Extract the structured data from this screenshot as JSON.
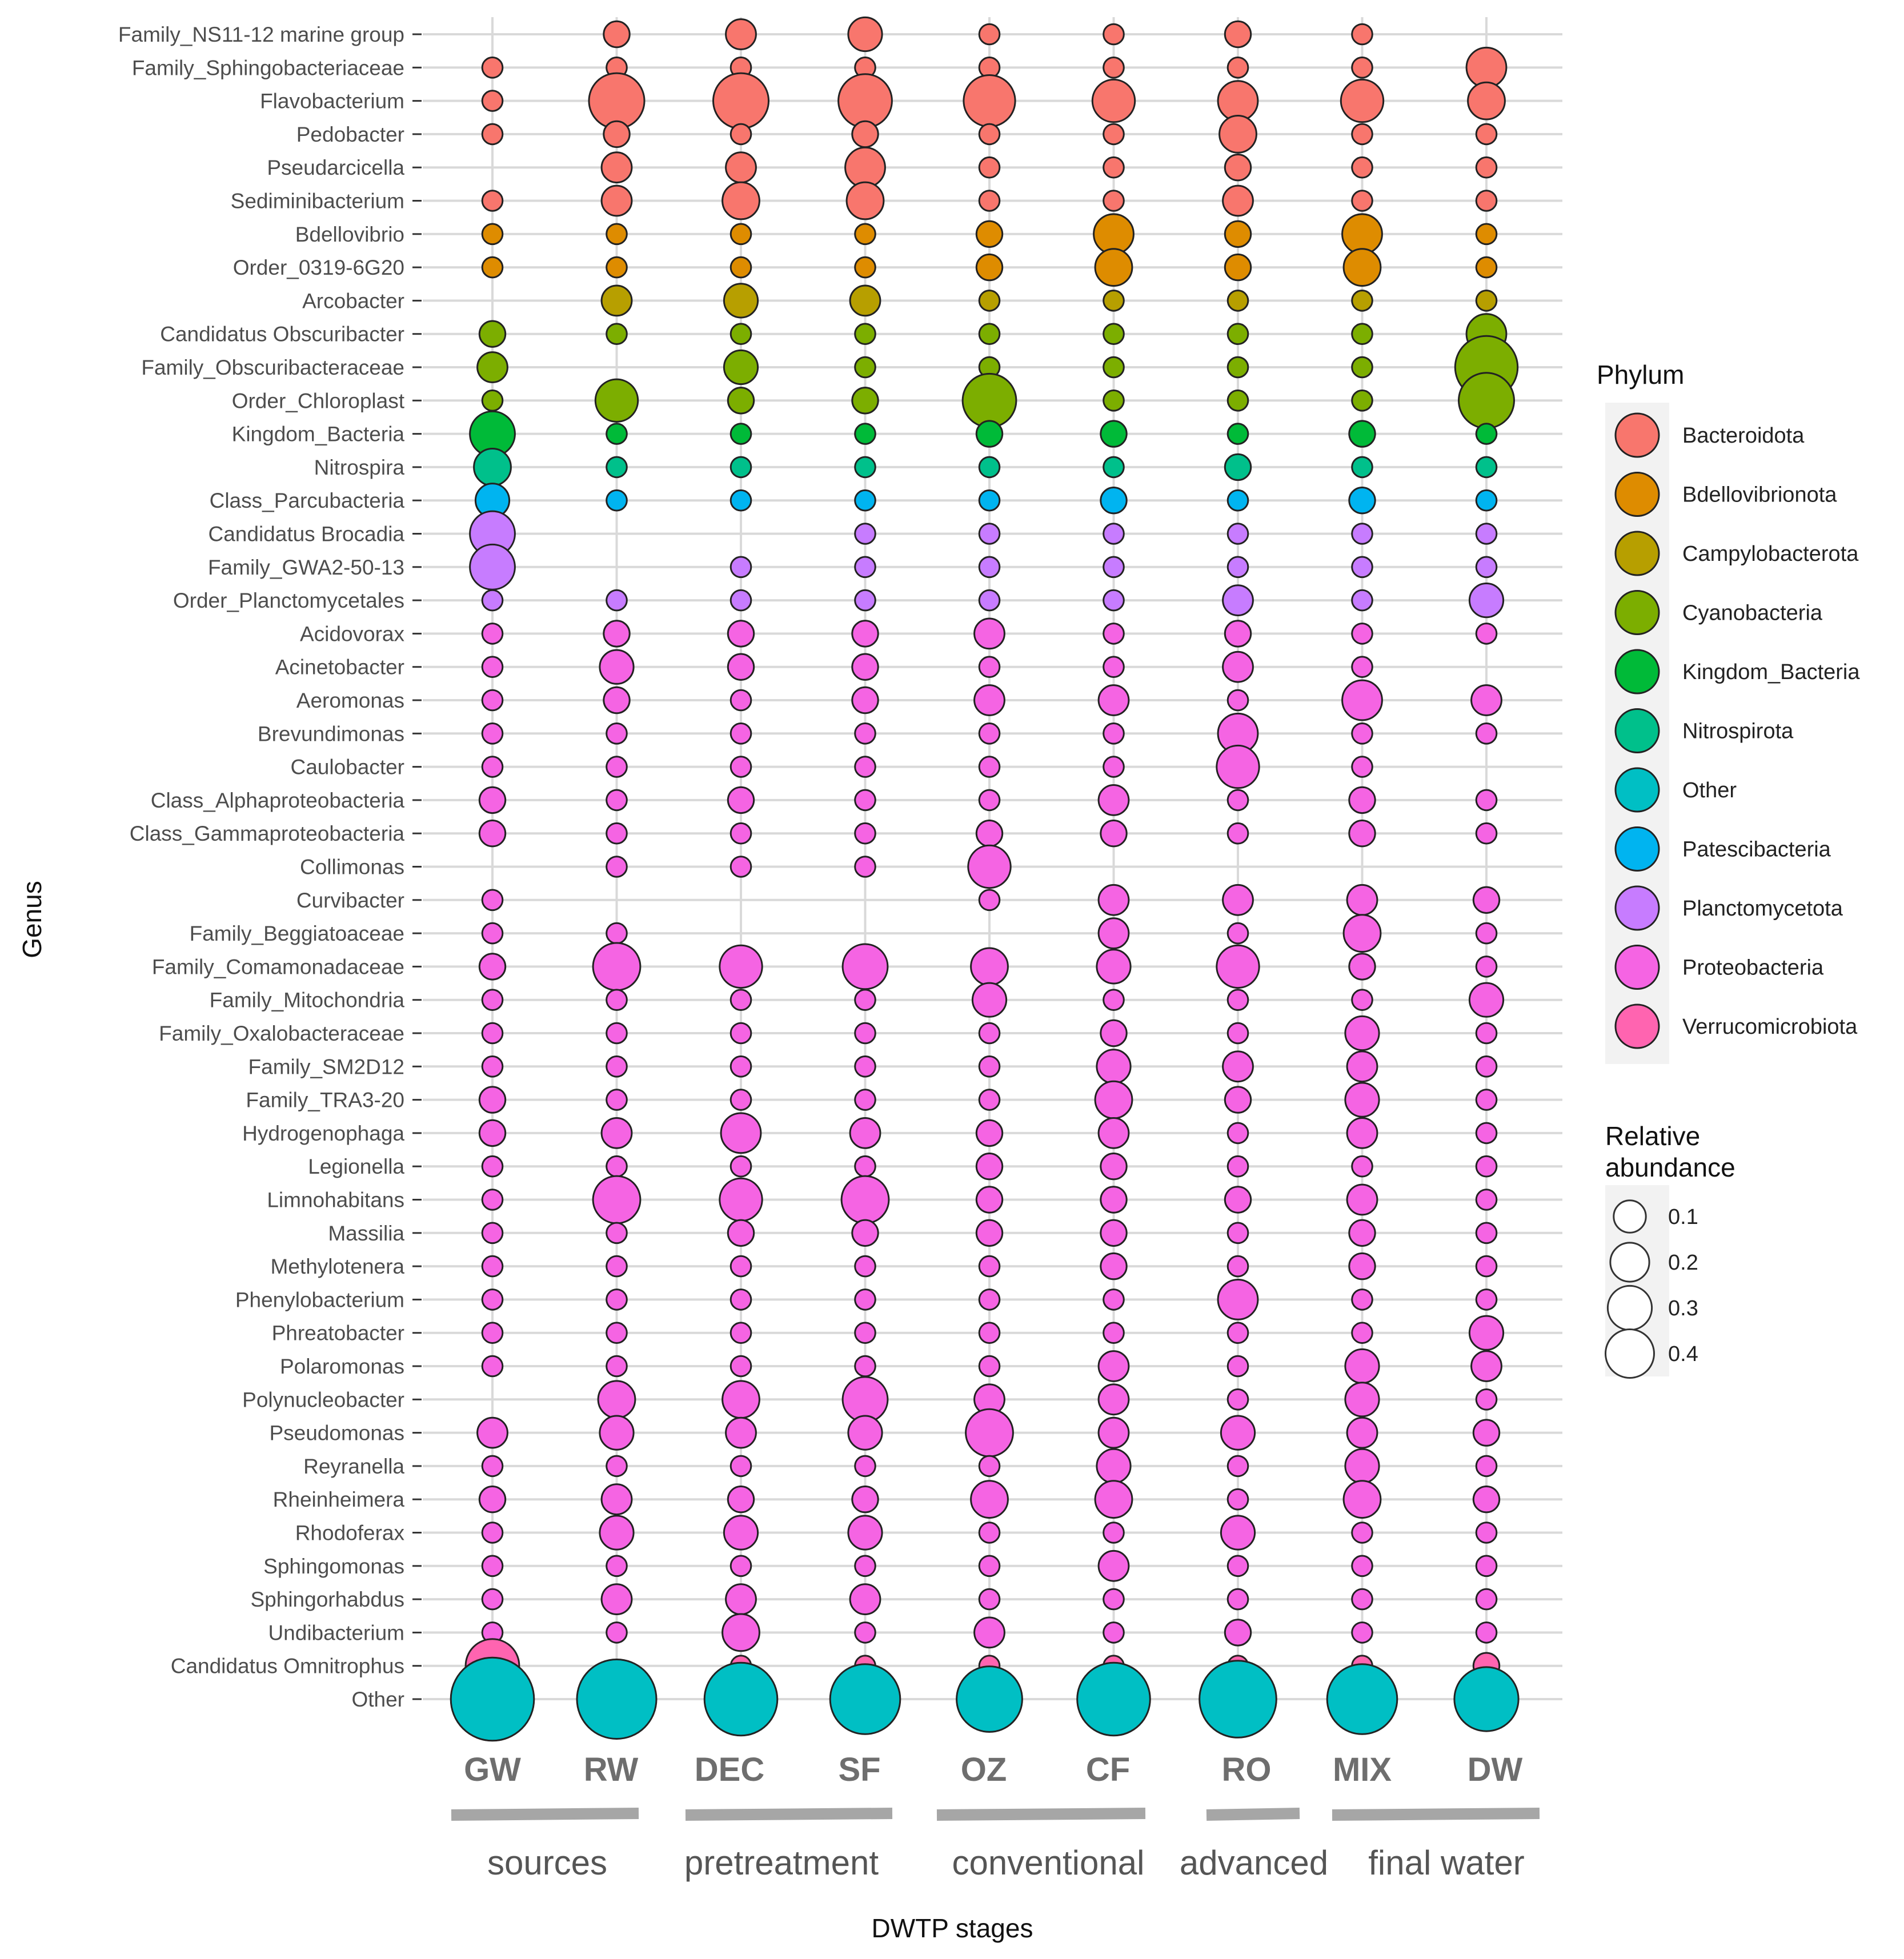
{
  "chart_data": {
    "type": "scatter",
    "subtype": "bubble",
    "xlabel": "DWTP stages",
    "ylabel": "Genus",
    "categories": [
      "GW",
      "RW",
      "DEC",
      "SF",
      "OZ",
      "CF",
      "RO",
      "MIX",
      "DW"
    ],
    "stage_groups": [
      {
        "label": "sources",
        "stages": [
          "GW",
          "RW"
        ]
      },
      {
        "label": "pretreatment",
        "stages": [
          "DEC",
          "SF"
        ]
      },
      {
        "label": "conventional",
        "stages": [
          "OZ",
          "CF"
        ]
      },
      {
        "label": "advanced",
        "stages": [
          "RO"
        ]
      },
      {
        "label": "final water",
        "stages": [
          "MIX",
          "DW"
        ]
      }
    ],
    "grid": true,
    "legend": {
      "phylum_title": "Phylum",
      "phyla": [
        {
          "name": "Bacteroidota",
          "color": "#f8766d"
        },
        {
          "name": "Bdellovibrionota",
          "color": "#de8c00"
        },
        {
          "name": "Campylobacterota",
          "color": "#b79f00"
        },
        {
          "name": "Cyanobacteria",
          "color": "#7cae00"
        },
        {
          "name": "Kingdom_Bacteria",
          "color": "#00ba38"
        },
        {
          "name": "Nitrospirota",
          "color": "#00c08b"
        },
        {
          "name": "Other",
          "color": "#00bfc4"
        },
        {
          "name": "Patescibacteria",
          "color": "#00b4f0"
        },
        {
          "name": "Planctomycetota",
          "color": "#c77cff"
        },
        {
          "name": "Proteobacteria",
          "color": "#f564e3"
        },
        {
          "name": "Verrucomicrobiota",
          "color": "#ff64b0"
        }
      ],
      "size_title_line1": "Relative",
      "size_title_line2": "abundance",
      "size_breaks": [
        {
          "label": "0.1",
          "value": 0.1
        },
        {
          "label": "0.2",
          "value": 0.2
        },
        {
          "label": "0.3",
          "value": 0.3
        },
        {
          "label": "0.4",
          "value": 0.4
        }
      ]
    },
    "genera": [
      {
        "name": "Family_NS11-12 marine group",
        "phylum": "Bacteroidota",
        "values": [
          null,
          0.02,
          0.03,
          0.04,
          0.01,
          0.01,
          0.02,
          0.01,
          null
        ]
      },
      {
        "name": "Family_Sphingobacteriaceae",
        "phylum": "Bacteroidota",
        "values": [
          0.01,
          0.01,
          0.01,
          0.01,
          0.01,
          0.01,
          0.01,
          0.01,
          0.06
        ]
      },
      {
        "name": "Flavobacterium",
        "phylum": "Bacteroidota",
        "values": [
          0.01,
          0.13,
          0.13,
          0.12,
          0.11,
          0.07,
          0.06,
          0.07,
          0.05
        ]
      },
      {
        "name": "Pedobacter",
        "phylum": "Bacteroidota",
        "values": [
          0.01,
          0.02,
          0.01,
          0.02,
          0.01,
          0.01,
          0.05,
          0.01,
          0.01
        ]
      },
      {
        "name": "Pseudarcicella",
        "phylum": "Bacteroidota",
        "values": [
          null,
          0.03,
          0.03,
          0.06,
          0.01,
          0.01,
          0.02,
          0.01,
          0.01
        ]
      },
      {
        "name": "Sediminibacterium",
        "phylum": "Bacteroidota",
        "values": [
          0.01,
          0.03,
          0.05,
          0.05,
          0.01,
          0.01,
          0.03,
          0.01,
          0.01
        ]
      },
      {
        "name": "Bdellovibrio",
        "phylum": "Bdellovibrionota",
        "values": [
          0.01,
          0.01,
          0.01,
          0.01,
          0.02,
          0.06,
          0.02,
          0.06,
          0.01
        ]
      },
      {
        "name": "Order_0319-6G20",
        "phylum": "Bdellovibrionota",
        "values": [
          0.01,
          0.01,
          0.01,
          0.01,
          0.02,
          0.05,
          0.02,
          0.05,
          0.01
        ]
      },
      {
        "name": "Arcobacter",
        "phylum": "Campylobacterota",
        "values": [
          null,
          0.03,
          0.04,
          0.03,
          0.01,
          0.01,
          0.01,
          0.01,
          0.01
        ]
      },
      {
        "name": "Candidatus Obscuribacter",
        "phylum": "Cyanobacteria",
        "values": [
          0.02,
          0.01,
          0.01,
          0.01,
          0.01,
          0.01,
          0.01,
          0.01,
          0.06
        ]
      },
      {
        "name": "Family_Obscuribacteraceae",
        "phylum": "Cyanobacteria",
        "values": [
          0.03,
          null,
          0.04,
          0.01,
          0.01,
          0.01,
          0.01,
          0.01,
          0.17
        ]
      },
      {
        "name": "Order_Chloroplast",
        "phylum": "Cyanobacteria",
        "values": [
          0.01,
          0.07,
          0.02,
          0.02,
          0.12,
          0.01,
          0.01,
          0.01,
          0.13
        ]
      },
      {
        "name": "Kingdom_Bacteria",
        "phylum": "Kingdom_Bacteria",
        "values": [
          0.08,
          0.01,
          0.01,
          0.01,
          0.02,
          0.02,
          0.01,
          0.02,
          0.01
        ]
      },
      {
        "name": "Nitrospira",
        "phylum": "Nitrospirota",
        "values": [
          0.05,
          0.01,
          0.01,
          0.01,
          0.01,
          0.01,
          0.02,
          0.01,
          0.01
        ]
      },
      {
        "name": "Class_Parcubacteria",
        "phylum": "Patescibacteria",
        "values": [
          0.04,
          0.01,
          0.01,
          0.01,
          0.01,
          0.02,
          0.01,
          0.02,
          0.01
        ]
      },
      {
        "name": "Candidatus Brocadia",
        "phylum": "Planctomycetota",
        "values": [
          0.08,
          null,
          null,
          0.01,
          0.01,
          0.01,
          0.01,
          0.01,
          0.01
        ]
      },
      {
        "name": "Family_GWA2-50-13",
        "phylum": "Planctomycetota",
        "values": [
          0.08,
          null,
          0.01,
          0.01,
          0.01,
          0.01,
          0.01,
          0.01,
          0.01
        ]
      },
      {
        "name": "Order_Planctomycetales",
        "phylum": "Planctomycetota",
        "values": [
          0.01,
          0.01,
          0.01,
          0.01,
          0.01,
          0.01,
          0.03,
          0.01,
          0.04
        ]
      },
      {
        "name": "Acidovorax",
        "phylum": "Proteobacteria",
        "values": [
          0.01,
          0.02,
          0.02,
          0.02,
          0.03,
          0.01,
          0.02,
          0.01,
          0.01
        ]
      },
      {
        "name": "Acinetobacter",
        "phylum": "Proteobacteria",
        "values": [
          0.01,
          0.04,
          0.02,
          0.02,
          0.01,
          0.01,
          0.03,
          0.01,
          null
        ]
      },
      {
        "name": "Aeromonas",
        "phylum": "Proteobacteria",
        "values": [
          0.01,
          0.02,
          0.01,
          0.02,
          0.03,
          0.03,
          0.01,
          0.06,
          0.03
        ]
      },
      {
        "name": "Brevundimonas",
        "phylum": "Proteobacteria",
        "values": [
          0.01,
          0.01,
          0.01,
          0.01,
          0.01,
          0.01,
          0.06,
          0.01,
          0.01
        ]
      },
      {
        "name": "Caulobacter",
        "phylum": "Proteobacteria",
        "values": [
          0.01,
          0.01,
          0.01,
          0.01,
          0.01,
          0.01,
          0.07,
          0.01,
          null
        ]
      },
      {
        "name": "Class_Alphaproteobacteria",
        "phylum": "Proteobacteria",
        "values": [
          0.02,
          0.01,
          0.02,
          0.01,
          0.01,
          0.03,
          0.01,
          0.02,
          0.01
        ]
      },
      {
        "name": "Class_Gammaproteobacteria",
        "phylum": "Proteobacteria",
        "values": [
          0.02,
          0.01,
          0.01,
          0.01,
          0.02,
          0.02,
          0.01,
          0.02,
          0.01
        ]
      },
      {
        "name": "Collimonas",
        "phylum": "Proteobacteria",
        "values": [
          null,
          0.01,
          0.01,
          0.01,
          0.07,
          null,
          null,
          null,
          null
        ]
      },
      {
        "name": "Curvibacter",
        "phylum": "Proteobacteria",
        "values": [
          0.01,
          null,
          null,
          null,
          0.01,
          0.03,
          0.03,
          0.03,
          0.02
        ]
      },
      {
        "name": "Family_Beggiatoaceae",
        "phylum": "Proteobacteria",
        "values": [
          0.01,
          0.01,
          null,
          null,
          null,
          0.03,
          0.01,
          0.05,
          0.01
        ]
      },
      {
        "name": "Family_Comamonadaceae",
        "phylum": "Proteobacteria",
        "values": [
          0.02,
          0.09,
          0.07,
          0.08,
          0.05,
          0.04,
          0.07,
          0.02,
          0.01
        ]
      },
      {
        "name": "Family_Mitochondria",
        "phylum": "Proteobacteria",
        "values": [
          0.01,
          0.01,
          0.01,
          0.01,
          0.04,
          0.01,
          0.01,
          0.01,
          0.04
        ]
      },
      {
        "name": "Family_Oxalobacteraceae",
        "phylum": "Proteobacteria",
        "values": [
          0.01,
          0.01,
          0.01,
          0.01,
          0.01,
          0.02,
          0.01,
          0.04,
          0.01
        ]
      },
      {
        "name": "Family_SM2D12",
        "phylum": "Proteobacteria",
        "values": [
          0.01,
          0.01,
          0.01,
          0.01,
          0.01,
          0.04,
          0.03,
          0.03,
          0.01
        ]
      },
      {
        "name": "Family_TRA3-20",
        "phylum": "Proteobacteria",
        "values": [
          0.02,
          0.01,
          0.01,
          0.01,
          0.01,
          0.05,
          0.02,
          0.04,
          0.01
        ]
      },
      {
        "name": "Hydrogenophaga",
        "phylum": "Proteobacteria",
        "values": [
          0.02,
          0.03,
          0.06,
          0.03,
          0.02,
          0.03,
          0.01,
          0.03,
          0.01
        ]
      },
      {
        "name": "Legionella",
        "phylum": "Proteobacteria",
        "values": [
          0.01,
          0.01,
          0.01,
          0.01,
          0.02,
          0.02,
          0.01,
          0.01,
          0.01
        ]
      },
      {
        "name": "Limnohabitans",
        "phylum": "Proteobacteria",
        "values": [
          0.01,
          0.09,
          0.07,
          0.09,
          0.02,
          0.02,
          0.02,
          0.03,
          0.01
        ]
      },
      {
        "name": "Massilia",
        "phylum": "Proteobacteria",
        "values": [
          0.01,
          0.01,
          0.02,
          0.02,
          0.02,
          0.02,
          0.01,
          0.02,
          0.01
        ]
      },
      {
        "name": "Methylotenera",
        "phylum": "Proteobacteria",
        "values": [
          0.01,
          0.01,
          0.01,
          0.01,
          0.01,
          0.02,
          0.01,
          0.02,
          0.01
        ]
      },
      {
        "name": "Phenylobacterium",
        "phylum": "Proteobacteria",
        "values": [
          0.01,
          0.01,
          0.01,
          0.01,
          0.01,
          0.01,
          0.06,
          0.01,
          0.01
        ]
      },
      {
        "name": "Phreatobacter",
        "phylum": "Proteobacteria",
        "values": [
          0.01,
          0.01,
          0.01,
          0.01,
          0.01,
          0.01,
          0.01,
          0.01,
          0.04
        ]
      },
      {
        "name": "Polaromonas",
        "phylum": "Proteobacteria",
        "values": [
          0.01,
          0.01,
          0.01,
          0.01,
          0.01,
          0.03,
          0.01,
          0.04,
          0.03
        ]
      },
      {
        "name": "Polynucleobacter",
        "phylum": "Proteobacteria",
        "values": [
          null,
          0.05,
          0.05,
          0.08,
          0.03,
          0.03,
          0.01,
          0.04,
          0.01
        ]
      },
      {
        "name": "Pseudomonas",
        "phylum": "Proteobacteria",
        "values": [
          0.03,
          0.04,
          0.03,
          0.04,
          0.09,
          0.03,
          0.04,
          0.03,
          0.02
        ]
      },
      {
        "name": "Reyranella",
        "phylum": "Proteobacteria",
        "values": [
          0.01,
          0.01,
          0.01,
          0.01,
          0.01,
          0.04,
          0.01,
          0.04,
          0.01
        ]
      },
      {
        "name": "Rheinheimera",
        "phylum": "Proteobacteria",
        "values": [
          0.02,
          0.03,
          0.02,
          0.02,
          0.05,
          0.05,
          0.01,
          0.05,
          0.02
        ]
      },
      {
        "name": "Rhodoferax",
        "phylum": "Proteobacteria",
        "values": [
          0.01,
          0.04,
          0.04,
          0.04,
          0.01,
          0.01,
          0.04,
          0.01,
          0.01
        ]
      },
      {
        "name": "Sphingomonas",
        "phylum": "Proteobacteria",
        "values": [
          0.01,
          0.01,
          0.01,
          0.01,
          0.01,
          0.03,
          0.01,
          0.01,
          0.01
        ]
      },
      {
        "name": "Sphingorhabdus",
        "phylum": "Proteobacteria",
        "values": [
          0.01,
          0.03,
          0.03,
          0.03,
          0.01,
          0.01,
          0.01,
          0.01,
          0.01
        ]
      },
      {
        "name": "Undibacterium",
        "phylum": "Proteobacteria",
        "values": [
          0.01,
          0.01,
          0.05,
          0.01,
          0.03,
          0.01,
          0.02,
          0.01,
          0.01
        ]
      },
      {
        "name": "Candidatus Omnitrophus",
        "phylum": "Verrucomicrobiota",
        "values": [
          0.12,
          null,
          0.01,
          0.01,
          0.01,
          0.01,
          0.01,
          0.01,
          0.02
        ]
      },
      {
        "name": "Other",
        "phylum": "Other",
        "values": [
          0.32,
          0.29,
          0.24,
          0.22,
          0.19,
          0.24,
          0.27,
          0.22,
          0.18
        ]
      }
    ]
  }
}
